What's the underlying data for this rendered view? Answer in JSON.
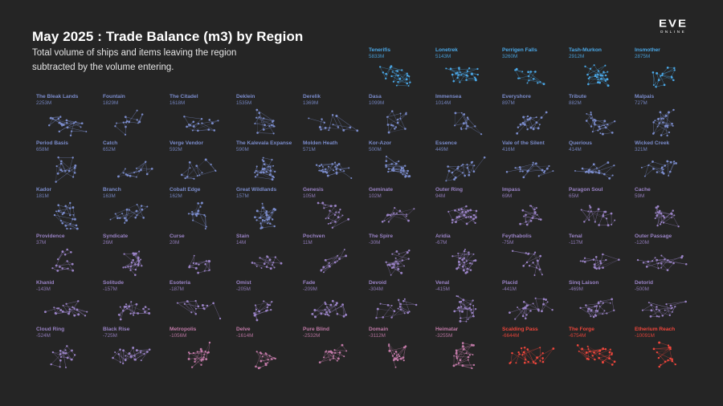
{
  "header": {
    "title": "May 2025 : Trade Balance (m3) by Region",
    "subtitle_line1": "Total volume of ships and items leaving the region",
    "subtitle_line2": "subtracted by the volume entering."
  },
  "logo": {
    "main": "EVE",
    "sub": "ONLINE"
  },
  "colors": {
    "background": "#252525",
    "highest_positive": "#4aa7e6",
    "positive": "#7b8ccc",
    "neutral": "#9a83c6",
    "negative": "#c27aa8",
    "most_negative": "#f0463c"
  },
  "chart_data": {
    "type": "small-multiples",
    "title": "May 2025 : Trade Balance (m3) by Region",
    "unit": "m3",
    "regions": [
      {
        "name": "Tenerifis",
        "label": "5833M",
        "value": 5833
      },
      {
        "name": "Lonetrek",
        "label": "5143M",
        "value": 5143
      },
      {
        "name": "Perrigen Falls",
        "label": "3260M",
        "value": 3260
      },
      {
        "name": "Tash-Murkon",
        "label": "2912M",
        "value": 2912
      },
      {
        "name": "Insmother",
        "label": "2875M",
        "value": 2875
      },
      {
        "name": "The Bleak Lands",
        "label": "2253M",
        "value": 2253
      },
      {
        "name": "Fountain",
        "label": "1829M",
        "value": 1829
      },
      {
        "name": "The Citadel",
        "label": "1618M",
        "value": 1618
      },
      {
        "name": "Deklein",
        "label": "1535M",
        "value": 1535
      },
      {
        "name": "Derelik",
        "label": "1369M",
        "value": 1369
      },
      {
        "name": "Dasa",
        "label": "1099M",
        "value": 1099
      },
      {
        "name": "Immensea",
        "label": "1014M",
        "value": 1014
      },
      {
        "name": "Everyshore",
        "label": "897M",
        "value": 897
      },
      {
        "name": "Tribute",
        "label": "882M",
        "value": 882
      },
      {
        "name": "Malpais",
        "label": "727M",
        "value": 727
      },
      {
        "name": "Period Basis",
        "label": "658M",
        "value": 658
      },
      {
        "name": "Catch",
        "label": "652M",
        "value": 652
      },
      {
        "name": "Verge Vendor",
        "label": "592M",
        "value": 592
      },
      {
        "name": "The Kalevala Expanse",
        "label": "590M",
        "value": 590
      },
      {
        "name": "Molden Heath",
        "label": "571M",
        "value": 571
      },
      {
        "name": "Kor-Azor",
        "label": "500M",
        "value": 500
      },
      {
        "name": "Essence",
        "label": "449M",
        "value": 449
      },
      {
        "name": "Vale of the Silent",
        "label": "416M",
        "value": 416
      },
      {
        "name": "Querious",
        "label": "414M",
        "value": 414
      },
      {
        "name": "Wicked Creek",
        "label": "321M",
        "value": 321
      },
      {
        "name": "Kador",
        "label": "181M",
        "value": 181
      },
      {
        "name": "Branch",
        "label": "163M",
        "value": 163
      },
      {
        "name": "Cobalt Edge",
        "label": "162M",
        "value": 162
      },
      {
        "name": "Great Wildlands",
        "label": "157M",
        "value": 157
      },
      {
        "name": "Genesis",
        "label": "105M",
        "value": 105
      },
      {
        "name": "Geminate",
        "label": "102M",
        "value": 102
      },
      {
        "name": "Outer Ring",
        "label": "94M",
        "value": 94
      },
      {
        "name": "Impass",
        "label": "69M",
        "value": 69
      },
      {
        "name": "Paragon Soul",
        "label": "65M",
        "value": 65
      },
      {
        "name": "Cache",
        "label": "59M",
        "value": 59
      },
      {
        "name": "Providence",
        "label": "37M",
        "value": 37
      },
      {
        "name": "Syndicate",
        "label": "26M",
        "value": 26
      },
      {
        "name": "Curse",
        "label": "20M",
        "value": 20
      },
      {
        "name": "Stain",
        "label": "14M",
        "value": 14
      },
      {
        "name": "Pochven",
        "label": "11M",
        "value": 11
      },
      {
        "name": "The Spire",
        "label": "-30M",
        "value": -30
      },
      {
        "name": "Aridia",
        "label": "-67M",
        "value": -67
      },
      {
        "name": "Feythabolis",
        "label": "-75M",
        "value": -75
      },
      {
        "name": "Tenal",
        "label": "-117M",
        "value": -117
      },
      {
        "name": "Outer Passage",
        "label": "-120M",
        "value": -120
      },
      {
        "name": "Khanid",
        "label": "-143M",
        "value": -143
      },
      {
        "name": "Solitude",
        "label": "-157M",
        "value": -157
      },
      {
        "name": "Esoteria",
        "label": "-187M",
        "value": -187
      },
      {
        "name": "Omist",
        "label": "-205M",
        "value": -205
      },
      {
        "name": "Fade",
        "label": "-209M",
        "value": -209
      },
      {
        "name": "Devoid",
        "label": "-304M",
        "value": -304
      },
      {
        "name": "Venal",
        "label": "-415M",
        "value": -415
      },
      {
        "name": "Placid",
        "label": "-441M",
        "value": -441
      },
      {
        "name": "Sinq Laison",
        "label": "-469M",
        "value": -469
      },
      {
        "name": "Detorid",
        "label": "-500M",
        "value": -500
      },
      {
        "name": "Cloud Ring",
        "label": "-524M",
        "value": -524
      },
      {
        "name": "Black Rise",
        "label": "-725M",
        "value": -725
      },
      {
        "name": "Metropolis",
        "label": "-1056M",
        "value": -1056
      },
      {
        "name": "Delve",
        "label": "-1614M",
        "value": -1614
      },
      {
        "name": "Pure Blind",
        "label": "-2532M",
        "value": -2532
      },
      {
        "name": "Domain",
        "label": "-3112M",
        "value": -3112
      },
      {
        "name": "Heimatar",
        "label": "-3255M",
        "value": -3255
      },
      {
        "name": "Scalding Pass",
        "label": "-6644M",
        "value": -6644
      },
      {
        "name": "The Forge",
        "label": "-6754M",
        "value": -6754
      },
      {
        "name": "Etherium Reach",
        "label": "-10091M",
        "value": -10091
      }
    ]
  }
}
